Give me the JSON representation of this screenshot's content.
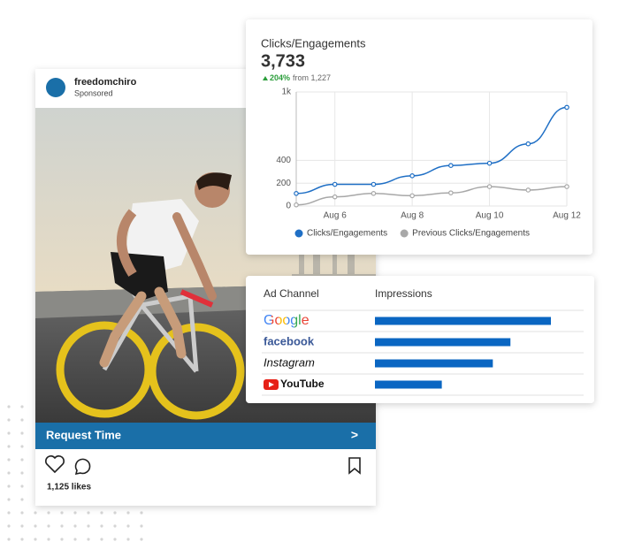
{
  "post": {
    "account": "freedomchiro",
    "label": "Sponsored",
    "button": "Request Time",
    "button_arrow": ">",
    "likes": "1,125 likes"
  },
  "chart_data": {
    "type": "line",
    "title": "Clicks/Engagements",
    "total": "3,733",
    "change": "204%",
    "comparison": "from 1,227",
    "categories": [
      null,
      "Aug 6",
      null,
      "Aug 8",
      null,
      "Aug 10",
      null,
      "Aug 12"
    ],
    "series": [
      {
        "name": "Clicks/Engagements",
        "color": "#1f6fc5",
        "values": [
          110,
          190,
          190,
          265,
          355,
          375,
          545,
          865
        ]
      },
      {
        "name": "Previous Clicks/Engagements",
        "color": "#a8a8a8",
        "values": [
          10,
          80,
          110,
          90,
          115,
          170,
          140,
          170
        ]
      }
    ],
    "ylim": [
      0,
      1000
    ],
    "yticks": [
      0,
      200,
      400,
      {
        "value": 1000,
        "label": "1k"
      }
    ],
    "grid": true
  },
  "ad_table": {
    "headers": [
      "Ad Channel",
      "Impressions"
    ],
    "color": "#0a66c2",
    "rows": [
      {
        "channel": "Google",
        "impressions": 100
      },
      {
        "channel": "facebook",
        "impressions": 77
      },
      {
        "channel": "Instagram",
        "impressions": 67
      },
      {
        "channel": "YouTube",
        "impressions": 38
      }
    ]
  }
}
